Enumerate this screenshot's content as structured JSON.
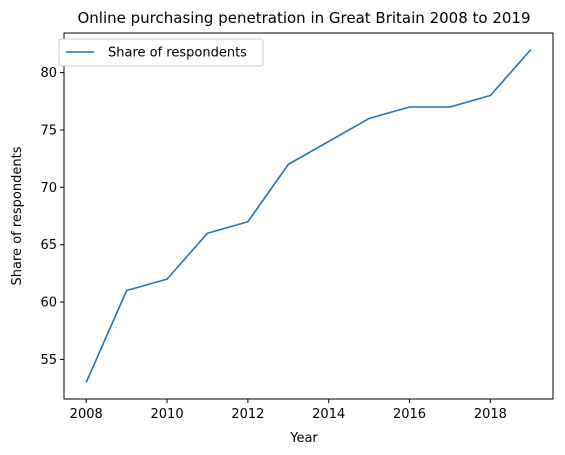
{
  "chart_data": {
    "type": "line",
    "title": "Online purchasing penetration in Great Britain 2008 to 2019",
    "xlabel": "Year",
    "ylabel": "Share of respondents",
    "x": [
      2008,
      2009,
      2010,
      2011,
      2012,
      2013,
      2014,
      2015,
      2016,
      2017,
      2018,
      2019
    ],
    "series": [
      {
        "name": "Share of respondents",
        "color": "#1f77b4",
        "values": [
          53,
          61,
          62,
          66,
          67,
          72,
          74,
          76,
          77,
          77,
          78,
          82
        ]
      }
    ],
    "xlim": [
      2007.45,
      2019.55
    ],
    "ylim": [
      51.55,
      83.45
    ],
    "xticks": [
      2008,
      2010,
      2012,
      2014,
      2016,
      2018
    ],
    "xtick_labels": [
      "2008",
      "2010",
      "2012",
      "2014",
      "2016",
      "2018"
    ],
    "yticks": [
      55,
      60,
      65,
      70,
      75,
      80
    ],
    "ytick_labels": [
      "55",
      "60",
      "65",
      "70",
      "75",
      "80"
    ],
    "grid": false,
    "legend_position": "top-left"
  }
}
